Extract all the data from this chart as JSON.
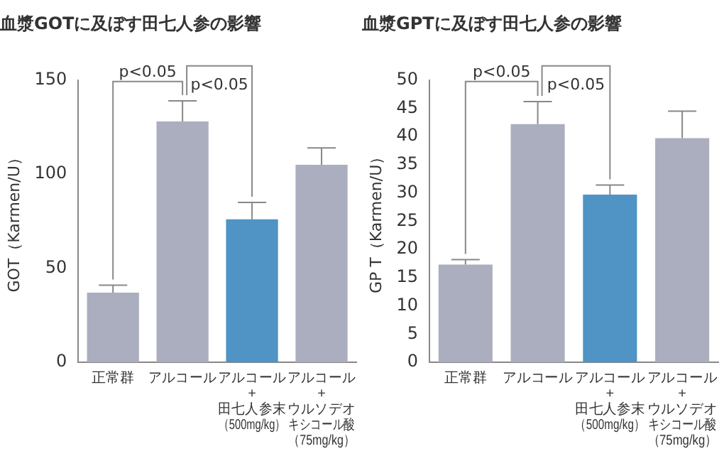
{
  "chart_data": [
    {
      "type": "bar",
      "title": "血漿GOTに及ぼす田七人参の影響",
      "ylabel": "GOT（Karmen/U）",
      "categories": [
        "正常群",
        "アルコール",
        "アルコール+田七人参末（500mg/kg）",
        "アルコール+ウルソデオキシコール酸（75mg/kg）"
      ],
      "values": [
        37,
        128,
        76,
        105
      ],
      "colors": [
        "#abaebf",
        "#abaebf",
        "#4f94c4",
        "#abaebf"
      ],
      "errors": [
        [
          37,
          41
        ],
        [
          128,
          139
        ],
        [
          76,
          85
        ],
        [
          105,
          114
        ]
      ],
      "ylim": [
        0,
        150
      ],
      "yticks": [
        0,
        50,
        100,
        150
      ],
      "annotations": [
        {
          "text": "p<0.05",
          "x": "アルコール",
          "y": 139
        },
        {
          "text": "p<0.05",
          "x": "アルコール+田七人参末（500mg/kg）",
          "y": 85
        }
      ]
    },
    {
      "type": "bar",
      "title": "血漿GPTに及ぼす田七人参の影響",
      "ylabel": "GP T（Karmen/U）",
      "categories": [
        "正常群",
        "アルコール",
        "アルコール+田七人参末（500mg/kg）",
        "アルコール+ウルソデオキシコール酸（75mg/kg）"
      ],
      "values": [
        17.3,
        42.2,
        29.7,
        39.7
      ],
      "colors": [
        "#abaebf",
        "#abaebf",
        "#4f94c4",
        "#abaebf"
      ],
      "errors": [
        [
          17.3,
          18.2
        ],
        [
          42.2,
          46.2
        ],
        [
          29.7,
          31.4
        ],
        [
          39.7,
          44.5
        ]
      ],
      "ylim": [
        0,
        50
      ],
      "yticks": [
        0,
        5,
        10,
        15,
        20,
        25,
        30,
        35,
        40,
        45,
        50
      ],
      "annotations": [
        {
          "text": "p<0.05",
          "x": "アルコール",
          "y": 46.2
        },
        {
          "text": "p<0.05",
          "x": "アルコール+田七人参末（500mg/kg）",
          "y": 31.4
        }
      ]
    }
  ]
}
